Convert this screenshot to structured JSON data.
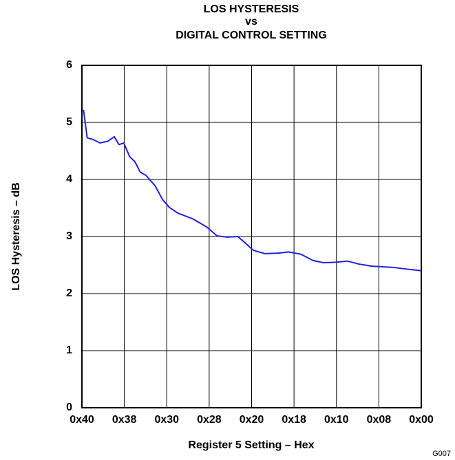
{
  "chart_data": {
    "type": "line",
    "title": [
      "LOS HYSTERESIS",
      "vs",
      "DIGITAL CONTROL SETTING"
    ],
    "x_label": "Register 5 Setting – Hex",
    "y_label": "LOS Hysteresis – dB",
    "annotation": "G007",
    "x": [
      63.7,
      63.0,
      61.9,
      60.6,
      59.1,
      57.9,
      57.0,
      56.1,
      55.0,
      54.0,
      53.0,
      51.9,
      50.2,
      48.8,
      47.5,
      45.9,
      43.1,
      40.5,
      38.5,
      36.6,
      34.6,
      33.0,
      31.7,
      29.5,
      26.9,
      25.0,
      22.7,
      20.4,
      18.4,
      16.1,
      13.9,
      11.9,
      9.3,
      5.4,
      2.8,
      0
    ],
    "series": [
      {
        "name": "LOS Hysteresis",
        "color": "#1f1fe0",
        "values": [
          5.22,
          4.73,
          4.7,
          4.64,
          4.67,
          4.75,
          4.61,
          4.64,
          4.4,
          4.31,
          4.13,
          4.07,
          3.89,
          3.65,
          3.51,
          3.41,
          3.31,
          3.17,
          3.01,
          2.99,
          3.0,
          2.87,
          2.76,
          2.7,
          2.71,
          2.73,
          2.69,
          2.58,
          2.54,
          2.55,
          2.57,
          2.52,
          2.48,
          2.46,
          2.43,
          2.4
        ]
      }
    ],
    "xlim": [
      64,
      0
    ],
    "xticks": [
      {
        "value": 64,
        "label": "0x40"
      },
      {
        "value": 56,
        "label": "0x38"
      },
      {
        "value": 48,
        "label": "0x30"
      },
      {
        "value": 40,
        "label": "0x28"
      },
      {
        "value": 32,
        "label": "0x20"
      },
      {
        "value": 24,
        "label": "0x18"
      },
      {
        "value": 16,
        "label": "0x10"
      },
      {
        "value": 8,
        "label": "0x08"
      },
      {
        "value": 0,
        "label": "0x00"
      }
    ],
    "ylim": [
      0,
      6
    ],
    "yticks": [
      0,
      1,
      2,
      3,
      4,
      5,
      6
    ],
    "grid": true
  }
}
